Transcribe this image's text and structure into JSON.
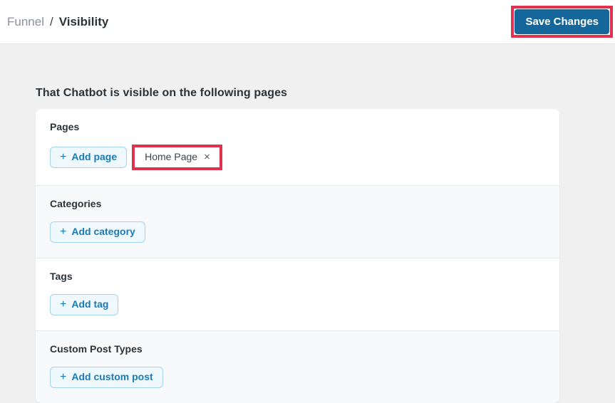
{
  "header": {
    "breadcrumb": {
      "parent": "Funnel",
      "separator": "/",
      "current": "Visibility"
    },
    "save_button_label": "Save Changes"
  },
  "main": {
    "title": "That Chatbot is visible on the following pages",
    "sections": [
      {
        "label": "Pages",
        "add_button": {
          "plus": "+",
          "label": "Add page"
        },
        "chip": {
          "label": "Home Page",
          "close": "×"
        }
      },
      {
        "label": "Categories",
        "add_button": {
          "plus": "+",
          "label": "Add category"
        }
      },
      {
        "label": "Tags",
        "add_button": {
          "plus": "+",
          "label": "Add tag"
        }
      },
      {
        "label": "Custom Post Types",
        "add_button": {
          "plus": "+",
          "label": "Add custom post"
        }
      }
    ]
  },
  "colors": {
    "annotation_red": "#e0314e",
    "save_button_blue": "#15679b",
    "accent_blue": "#1a7ab6",
    "add_button_bg": "#eff8fd",
    "add_button_border": "#a5d3ee",
    "page_background": "#f0f0f1",
    "section_alt_background": "#f8f9fb",
    "text_dark": "#2c3338",
    "breadcrumb_gray": "#8b929b"
  }
}
